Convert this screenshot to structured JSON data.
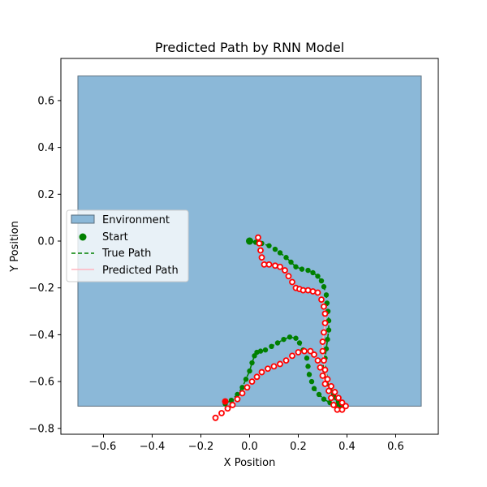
{
  "chart_data": {
    "type": "line",
    "title": "Predicted Path by RNN Model",
    "xlabel": "X Position",
    "ylabel": "Y Position",
    "xlim": [
      -0.775,
      0.775
    ],
    "ylim": [
      -0.825,
      0.78
    ],
    "xticks": [
      -0.6,
      -0.4,
      -0.2,
      0.0,
      0.2,
      0.4,
      0.6
    ],
    "xtick_labels": [
      "−0.6",
      "−0.4",
      "−0.2",
      "0.0",
      "0.2",
      "0.4",
      "0.6"
    ],
    "yticks": [
      -0.8,
      -0.6,
      -0.4,
      -0.2,
      0.0,
      0.2,
      0.4,
      0.6
    ],
    "ytick_labels": [
      "−0.8",
      "−0.6",
      "−0.4",
      "−0.2",
      "0.0",
      "0.2",
      "0.4",
      "0.6"
    ],
    "grid": false,
    "legend_position": "center-left",
    "environment": {
      "name": "Environment",
      "x": [
        -0.705,
        0.705
      ],
      "y": [
        -0.705,
        0.705
      ],
      "fill_color": "#8bb8d8",
      "edge_color": "#5a6e7e"
    },
    "start": {
      "name": "Start",
      "x": 0.0,
      "y": 0.0,
      "color": "#008000"
    },
    "series": [
      {
        "name": "True Path",
        "color": "#008000",
        "style": "dashed",
        "x": [
          0.0,
          0.025,
          0.05,
          0.08,
          0.105,
          0.125,
          0.15,
          0.17,
          0.19,
          0.215,
          0.24,
          0.26,
          0.28,
          0.295,
          0.305,
          0.315,
          0.318,
          0.322,
          0.325,
          0.325,
          0.32,
          0.315,
          0.31,
          0.305,
          0.31,
          0.315,
          0.33,
          0.345,
          0.355,
          0.365,
          0.375,
          0.39,
          0.375,
          0.355,
          0.33,
          0.305,
          0.285,
          0.265,
          0.255,
          0.245,
          0.24,
          0.235,
          0.22,
          0.205,
          0.19,
          0.165,
          0.14,
          0.115,
          0.09,
          0.065,
          0.045,
          0.03,
          0.02,
          0.01,
          0.0,
          -0.015,
          -0.03,
          -0.05,
          -0.075,
          -0.1
        ],
        "y": [
          0.0,
          -0.005,
          -0.01,
          -0.02,
          -0.035,
          -0.05,
          -0.07,
          -0.09,
          -0.11,
          -0.12,
          -0.125,
          -0.135,
          -0.15,
          -0.17,
          -0.195,
          -0.23,
          -0.265,
          -0.3,
          -0.34,
          -0.38,
          -0.42,
          -0.46,
          -0.5,
          -0.54,
          -0.575,
          -0.61,
          -0.635,
          -0.655,
          -0.67,
          -0.685,
          -0.7,
          -0.705,
          -0.705,
          -0.7,
          -0.69,
          -0.675,
          -0.655,
          -0.63,
          -0.6,
          -0.57,
          -0.535,
          -0.5,
          -0.465,
          -0.435,
          -0.415,
          -0.41,
          -0.42,
          -0.435,
          -0.45,
          -0.465,
          -0.47,
          -0.475,
          -0.49,
          -0.52,
          -0.555,
          -0.59,
          -0.625,
          -0.655,
          -0.68,
          -0.695
        ]
      },
      {
        "name": "Predicted Path",
        "color": "#ffb6c1",
        "style": "solid",
        "marker_color": "#ff0000",
        "x": [
          0.035,
          0.04,
          0.045,
          0.05,
          0.06,
          0.08,
          0.105,
          0.125,
          0.145,
          0.16,
          0.175,
          0.19,
          0.205,
          0.22,
          0.24,
          0.26,
          0.28,
          0.295,
          0.305,
          0.31,
          0.31,
          0.305,
          0.3,
          0.3,
          0.305,
          0.31,
          0.32,
          0.335,
          0.35,
          0.365,
          0.38,
          0.395,
          0.38,
          0.36,
          0.345,
          0.335,
          0.325,
          0.31,
          0.3,
          0.29,
          0.28,
          0.265,
          0.25,
          0.225,
          0.2,
          0.175,
          0.15,
          0.125,
          0.1,
          0.075,
          0.05,
          0.03,
          0.01,
          -0.01,
          -0.03,
          -0.05,
          -0.07,
          -0.09,
          -0.115,
          -0.14
        ],
        "y": [
          0.015,
          -0.01,
          -0.04,
          -0.07,
          -0.1,
          -0.1,
          -0.105,
          -0.11,
          -0.125,
          -0.15,
          -0.175,
          -0.2,
          -0.205,
          -0.21,
          -0.21,
          -0.215,
          -0.22,
          -0.25,
          -0.28,
          -0.31,
          -0.35,
          -0.39,
          -0.43,
          -0.47,
          -0.51,
          -0.55,
          -0.59,
          -0.62,
          -0.645,
          -0.67,
          -0.69,
          -0.705,
          -0.72,
          -0.72,
          -0.7,
          -0.67,
          -0.64,
          -0.61,
          -0.575,
          -0.54,
          -0.51,
          -0.485,
          -0.47,
          -0.47,
          -0.475,
          -0.49,
          -0.51,
          -0.525,
          -0.535,
          -0.545,
          -0.56,
          -0.58,
          -0.6,
          -0.625,
          -0.65,
          -0.675,
          -0.7,
          -0.715,
          -0.735,
          -0.755
        ]
      }
    ],
    "predicted_start_marker": {
      "x": -0.1,
      "y": -0.685,
      "color": "#ff0000"
    },
    "legend": [
      {
        "label": "Environment",
        "kind": "patch"
      },
      {
        "label": "Start",
        "kind": "dot"
      },
      {
        "label": "True Path",
        "kind": "dashed-line"
      },
      {
        "label": "Predicted Path",
        "kind": "solid-line"
      }
    ]
  }
}
